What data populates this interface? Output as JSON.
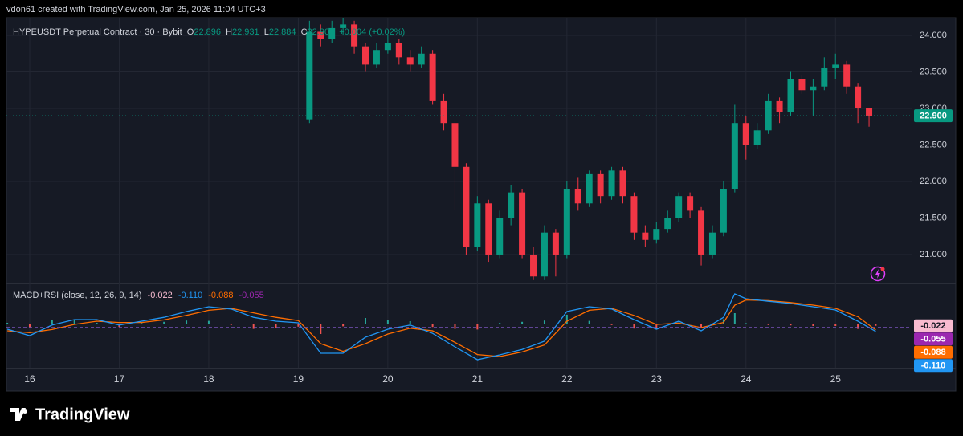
{
  "header": {
    "text": "vdon61 created with TradingView.com, Jan 25, 2026 11:04 UTC+3"
  },
  "footer": {
    "brand": "TradingView"
  },
  "chart_data": [
    {
      "type": "candlestick",
      "title": "HYPEUSDT Perpetual Contract · 30 · Bybit",
      "legend": {
        "o_label": "O",
        "o": "22.896",
        "h_label": "H",
        "h": "22.931",
        "l_label": "L",
        "l": "22.884",
        "c_label": "C",
        "change": "+0.004 (+0.02%)"
      },
      "up_color": "#089981",
      "down_color": "#f23645",
      "xlim": [
        15.74,
        25.85
      ],
      "xticks": [
        16,
        17,
        18,
        19,
        20,
        21,
        22,
        23,
        24,
        25
      ],
      "ylim": [
        20.615,
        24.242
      ],
      "yticks": [
        {
          "value": 21,
          "label": "21.000"
        },
        {
          "value": 21.5,
          "label": "21.500"
        },
        {
          "value": 22,
          "label": "22.000"
        },
        {
          "value": 22.5,
          "label": "22.500"
        },
        {
          "value": 23,
          "label": "23.000"
        },
        {
          "value": 23.5,
          "label": "23.500"
        },
        {
          "value": 24,
          "label": "24.000"
        }
      ],
      "grid": true,
      "last_price": {
        "value": 22.9,
        "label": "22.900"
      },
      "x": [
        19.125,
        19.25,
        19.375,
        19.5,
        19.625,
        19.75,
        19.875,
        20.0,
        20.125,
        20.25,
        20.375,
        20.5,
        20.625,
        20.75,
        20.875,
        21.0,
        21.125,
        21.25,
        21.375,
        21.5,
        21.625,
        21.75,
        21.875,
        22.0,
        22.125,
        22.25,
        22.375,
        22.5,
        22.625,
        22.75,
        22.875,
        23.0,
        23.125,
        23.25,
        23.375,
        23.5,
        23.625,
        23.75,
        23.875,
        24.0,
        24.125,
        24.25,
        24.375,
        24.5,
        24.625,
        24.75,
        24.875,
        25.0,
        25.125,
        25.25,
        25.375
      ],
      "open": [
        22.85,
        24.05,
        23.95,
        24.1,
        24.15,
        23.85,
        23.6,
        23.8,
        23.9,
        23.7,
        23.6,
        23.75,
        23.1,
        22.8,
        22.2,
        21.1,
        21.7,
        21.0,
        21.5,
        21.85,
        21.0,
        20.7,
        21.3,
        21.0,
        21.9,
        21.7,
        22.1,
        21.8,
        22.15,
        21.8,
        21.3,
        21.2,
        21.35,
        21.5,
        21.8,
        21.6,
        21.0,
        21.3,
        21.9,
        22.8,
        22.5,
        22.7,
        23.1,
        22.95,
        23.4,
        23.25,
        23.3,
        23.55,
        23.6,
        23.3,
        23.0
      ],
      "high": [
        24.2,
        24.15,
        24.2,
        24.24,
        24.2,
        23.9,
        23.9,
        24.0,
        23.95,
        23.8,
        23.85,
        23.8,
        23.2,
        22.85,
        22.25,
        21.8,
        21.75,
        21.6,
        21.95,
        21.9,
        21.1,
        21.4,
        21.35,
        22.0,
        22.05,
        22.15,
        22.15,
        22.2,
        22.2,
        21.85,
        21.4,
        21.45,
        21.6,
        21.85,
        21.85,
        21.65,
        21.4,
        22.0,
        23.05,
        22.9,
        22.8,
        23.2,
        23.15,
        23.5,
        23.45,
        23.4,
        23.7,
        23.75,
        23.65,
        23.35,
        23.0
      ],
      "low": [
        22.8,
        23.85,
        23.9,
        24.0,
        23.75,
        23.5,
        23.55,
        23.75,
        23.6,
        23.5,
        23.55,
        23.05,
        22.7,
        21.6,
        21.0,
        21.05,
        20.9,
        20.95,
        21.4,
        20.95,
        20.65,
        20.65,
        20.7,
        20.95,
        21.6,
        21.65,
        21.7,
        21.75,
        21.7,
        21.2,
        21.1,
        21.15,
        21.3,
        21.45,
        21.5,
        20.85,
        20.95,
        21.25,
        21.85,
        22.3,
        22.45,
        22.65,
        22.8,
        22.9,
        23.2,
        22.9,
        23.25,
        23.4,
        23.2,
        22.8,
        22.75
      ],
      "close": [
        24.05,
        23.95,
        24.1,
        24.15,
        23.85,
        23.6,
        23.8,
        23.9,
        23.7,
        23.6,
        23.75,
        23.1,
        22.8,
        22.2,
        21.1,
        21.7,
        21.0,
        21.5,
        21.85,
        21.0,
        20.7,
        21.3,
        21.0,
        21.9,
        21.7,
        22.1,
        21.8,
        22.15,
        21.8,
        21.3,
        21.2,
        21.35,
        21.5,
        21.8,
        21.6,
        21.0,
        21.3,
        21.9,
        22.8,
        22.5,
        22.7,
        23.1,
        22.95,
        23.4,
        23.25,
        23.3,
        23.55,
        23.6,
        23.3,
        23.0,
        22.9
      ]
    },
    {
      "type": "macd",
      "title": "MACD+RSI (close, 12, 26, 9, 14)",
      "xlim": [
        15.74,
        25.85
      ],
      "ylim": [
        -0.675,
        0.6125
      ],
      "x": [
        15.75,
        16.0,
        16.25,
        16.5,
        16.75,
        17.0,
        17.25,
        17.5,
        17.75,
        18.0,
        18.25,
        18.5,
        18.75,
        19.0,
        19.25,
        19.5,
        19.75,
        20.0,
        20.25,
        20.5,
        20.75,
        21.0,
        21.25,
        21.5,
        21.75,
        22.0,
        22.25,
        22.5,
        22.75,
        23.0,
        23.25,
        23.5,
        23.75,
        23.875,
        24.0,
        24.25,
        24.5,
        24.75,
        25.0,
        25.25,
        25.45
      ],
      "macd": {
        "color": "#2196f3",
        "values": [
          -0.075,
          -0.175,
          -0.01,
          0.075,
          0.075,
          -0.01,
          0.05,
          0.11,
          0.2,
          0.275,
          0.24,
          0.11,
          0.05,
          0.025,
          -0.45,
          -0.45,
          -0.2,
          -0.075,
          -0.01,
          -0.14,
          -0.35,
          -0.55,
          -0.475,
          -0.39,
          -0.26,
          0.2,
          0.275,
          0.24,
          0.075,
          -0.075,
          0.05,
          -0.1,
          0.11,
          0.475,
          0.4,
          0.36,
          0.325,
          0.275,
          0.225,
          0.05,
          -0.11
        ]
      },
      "signal": {
        "color": "#ff6d00",
        "values": [
          -0.1,
          -0.13,
          -0.08,
          0.0,
          0.05,
          0.03,
          0.03,
          0.07,
          0.14,
          0.22,
          0.25,
          0.18,
          0.11,
          0.06,
          -0.3,
          -0.42,
          -0.3,
          -0.15,
          -0.06,
          -0.1,
          -0.28,
          -0.47,
          -0.5,
          -0.43,
          -0.32,
          0.05,
          0.22,
          0.25,
          0.14,
          0.0,
          0.02,
          -0.05,
          0.03,
          0.3,
          0.38,
          0.37,
          0.34,
          0.3,
          0.25,
          0.12,
          -0.088
        ]
      },
      "histogram": {
        "up_color": "#26a69a",
        "down_color": "#ef5350",
        "values": [
          0.025,
          -0.045,
          0.07,
          0.075,
          0.025,
          -0.04,
          0.02,
          0.04,
          0.06,
          0.055,
          -0.01,
          -0.07,
          -0.06,
          -0.035,
          -0.15,
          -0.03,
          0.1,
          0.075,
          0.05,
          -0.04,
          -0.07,
          -0.08,
          0.025,
          0.04,
          0.06,
          0.15,
          0.055,
          -0.01,
          -0.065,
          -0.075,
          0.03,
          -0.05,
          0.08,
          0.175,
          0.02,
          -0.01,
          -0.015,
          -0.025,
          -0.025,
          -0.07,
          -0.022
        ]
      },
      "tags": [
        {
          "value": -0.022,
          "label": "-0.022",
          "color": "#f8bbd0",
          "text_color": "#131722"
        },
        {
          "value": -0.055,
          "label": "-0.055",
          "color": "#9c27b0",
          "text_color": "#ffffff"
        },
        {
          "value": -0.088,
          "label": "-0.088",
          "color": "#ff6d00",
          "text_color": "#ffffff"
        },
        {
          "value": -0.11,
          "label": "-0.110",
          "color": "#2196f3",
          "text_color": "#ffffff"
        }
      ]
    }
  ]
}
